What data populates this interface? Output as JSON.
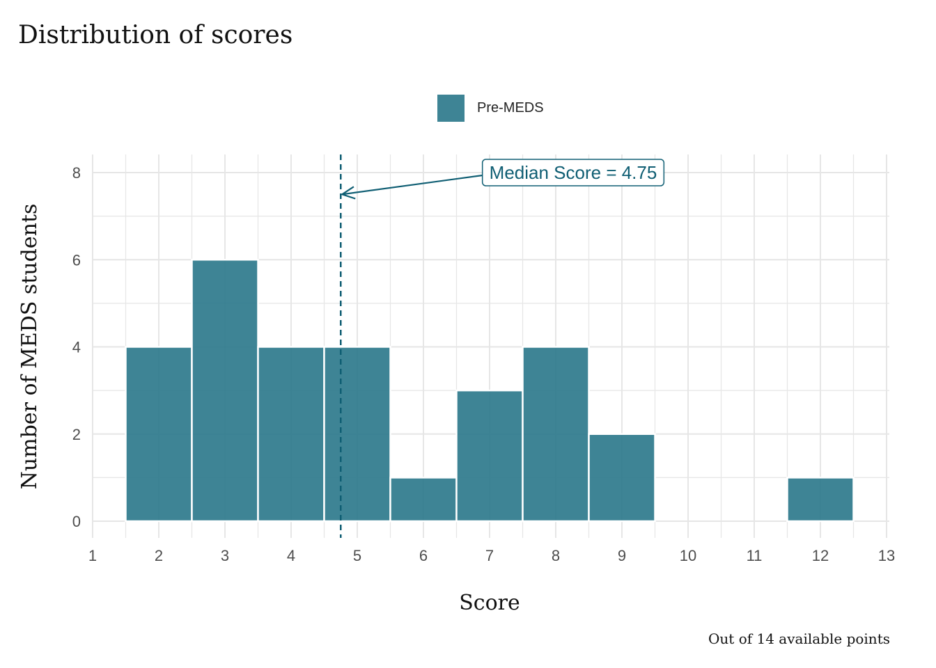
{
  "chart_data": {
    "type": "bar",
    "title": "Distribution of scores",
    "xlabel": "Score",
    "ylabel": "Number of MEDS students",
    "caption": "Out of 14 available points",
    "legend": {
      "label": "Pre-MEDS",
      "position": "top"
    },
    "categories": [
      2,
      3,
      4,
      5,
      6,
      7,
      8,
      9,
      10,
      11,
      12
    ],
    "values": [
      4,
      6,
      4,
      4,
      1,
      3,
      4,
      2,
      0,
      0,
      1
    ],
    "xlim": [
      1,
      13
    ],
    "ylim": [
      0,
      8
    ],
    "xticks": [
      1,
      2,
      3,
      4,
      5,
      6,
      7,
      8,
      9,
      10,
      11,
      12,
      13
    ],
    "yticks": [
      0,
      2,
      4,
      6,
      8
    ],
    "median": 4.75,
    "annotation": "Median Score = 4.75",
    "grid": true,
    "colors": {
      "bar": "#2E7A8C",
      "median_line": "#0F5E73",
      "annotation": "#0F5E73"
    }
  }
}
